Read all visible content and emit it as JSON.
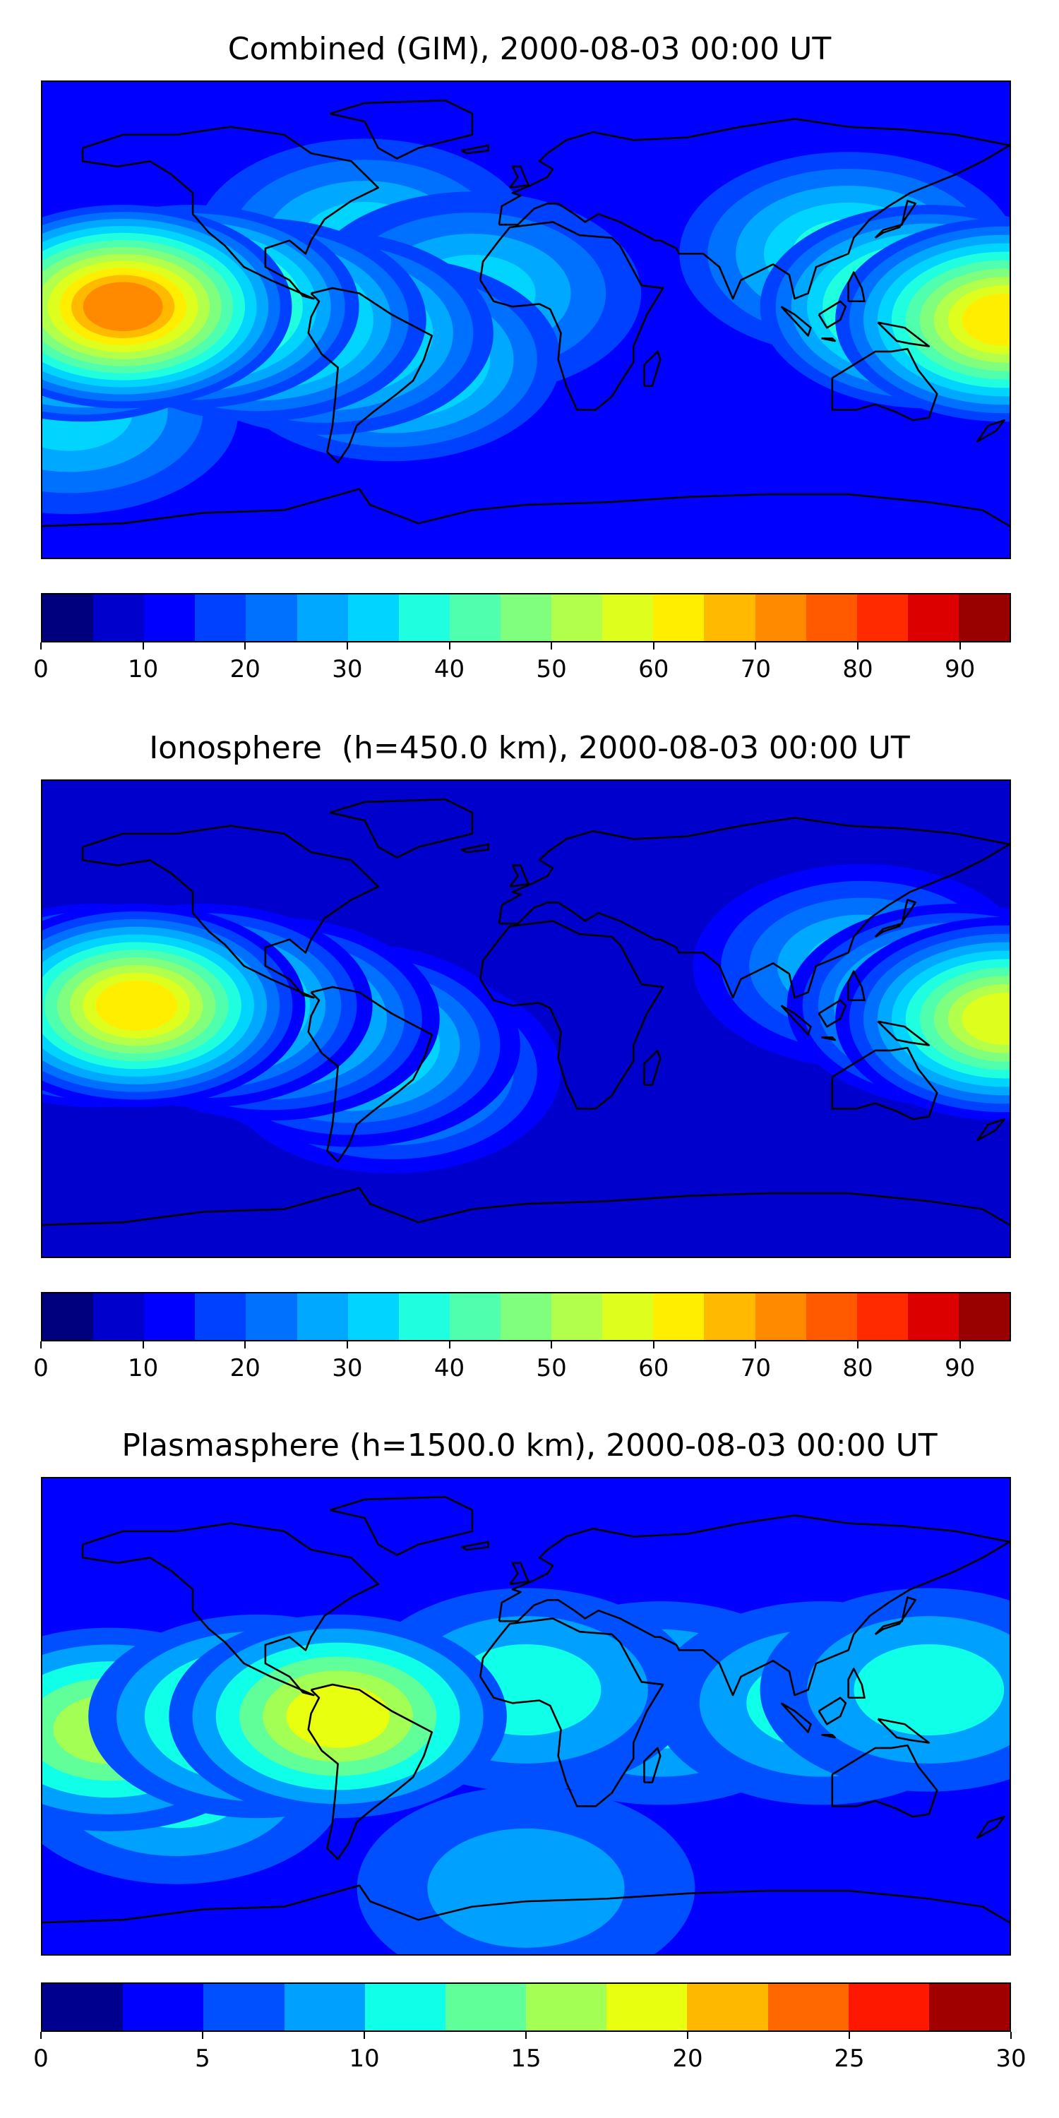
{
  "chart_data": [
    {
      "type": "heatmap",
      "title": "Combined (GIM), 2000-08-03 00:00 UT",
      "xlabel": "",
      "ylabel": "",
      "colorbar": {
        "levels": [
          0,
          5,
          10,
          15,
          20,
          25,
          30,
          35,
          40,
          45,
          50,
          55,
          60,
          65,
          70,
          75,
          80,
          85,
          90,
          95
        ],
        "ticks": [
          0,
          10,
          20,
          30,
          40,
          50,
          60,
          70,
          80,
          90
        ],
        "colors": [
          "#00007f",
          "#0000cd",
          "#0000ff",
          "#0040ff",
          "#0070ff",
          "#00a8ff",
          "#00d4ff",
          "#1fffe0",
          "#50ffae",
          "#80ff7e",
          "#b2ff4c",
          "#deff1e",
          "#ffee00",
          "#ffba00",
          "#ff8a00",
          "#ff5a00",
          "#ff2a00",
          "#dd0000",
          "#990000"
        ]
      },
      "background_level": 10,
      "features": [
        {
          "lon": -150,
          "lat": 5,
          "value": 72
        },
        {
          "lon": -165,
          "lat": 0,
          "value": 70
        },
        {
          "lon": -125,
          "lat": 5,
          "value": 62
        },
        {
          "lon": -100,
          "lat": 0,
          "value": 52
        },
        {
          "lon": -75,
          "lat": -5,
          "value": 45
        },
        {
          "lon": -50,
          "lat": -15,
          "value": 40
        },
        {
          "lon": -20,
          "lat": 10,
          "value": 32
        },
        {
          "lon": 150,
          "lat": 5,
          "value": 55
        },
        {
          "lon": 178,
          "lat": 0,
          "value": 64
        },
        {
          "lon": 120,
          "lat": 25,
          "value": 35
        },
        {
          "lon": -60,
          "lat": 30,
          "value": 30
        },
        {
          "lon": -170,
          "lat": -35,
          "value": 30
        },
        {
          "lon": 30,
          "lat": -40,
          "value": 12
        },
        {
          "lon": 20,
          "lat": 55,
          "value": 12
        }
      ]
    },
    {
      "type": "heatmap",
      "title": "Ionosphere  (h=450.0 km), 2000-08-03 00:00 UT",
      "xlabel": "",
      "ylabel": "",
      "colorbar": {
        "levels": [
          0,
          5,
          10,
          15,
          20,
          25,
          30,
          35,
          40,
          45,
          50,
          55,
          60,
          65,
          70,
          75,
          80,
          85,
          90,
          95
        ],
        "ticks": [
          0,
          10,
          20,
          30,
          40,
          50,
          60,
          70,
          80,
          90
        ],
        "colors": [
          "#00007f",
          "#0000cd",
          "#0000ff",
          "#0040ff",
          "#0070ff",
          "#00a8ff",
          "#00d4ff",
          "#1fffe0",
          "#50ffae",
          "#80ff7e",
          "#b2ff4c",
          "#deff1e",
          "#ffee00",
          "#ffba00",
          "#ff8a00",
          "#ff5a00",
          "#ff2a00",
          "#dd0000",
          "#990000"
        ]
      },
      "background_level": 8,
      "features": [
        {
          "lon": -160,
          "lat": 5,
          "value": 60
        },
        {
          "lon": -145,
          "lat": 5,
          "value": 62
        },
        {
          "lon": -120,
          "lat": 5,
          "value": 52
        },
        {
          "lon": -95,
          "lat": 0,
          "value": 45
        },
        {
          "lon": -65,
          "lat": -10,
          "value": 40
        },
        {
          "lon": -50,
          "lat": -20,
          "value": 35
        },
        {
          "lon": 160,
          "lat": 5,
          "value": 50
        },
        {
          "lon": 178,
          "lat": 0,
          "value": 56
        },
        {
          "lon": 125,
          "lat": 20,
          "value": 30
        },
        {
          "lon": 40,
          "lat": -30,
          "value": 6
        }
      ]
    },
    {
      "type": "heatmap",
      "title": "Plasmasphere (h=1500.0 km), 2000-08-03 00:00 UT",
      "xlabel": "",
      "ylabel": "",
      "colorbar": {
        "levels": [
          0,
          2.5,
          5,
          7.5,
          10,
          12.5,
          15,
          17.5,
          20,
          22.5,
          25,
          27.5,
          30
        ],
        "ticks": [
          0,
          5,
          10,
          15,
          20,
          25,
          30
        ],
        "colors": [
          "#00008f",
          "#0000ff",
          "#0050ff",
          "#00a0ff",
          "#10ffe8",
          "#60ff9a",
          "#a4ff54",
          "#e8ff10",
          "#ffb800",
          "#ff6800",
          "#ff1800",
          "#a00000"
        ]
      },
      "background_level": 3,
      "features": [
        {
          "lon": -155,
          "lat": -5,
          "value": 15
        },
        {
          "lon": -100,
          "lat": 0,
          "value": 17
        },
        {
          "lon": -70,
          "lat": 0,
          "value": 18
        },
        {
          "lon": 0,
          "lat": 10,
          "value": 12
        },
        {
          "lon": 50,
          "lat": 5,
          "value": 10
        },
        {
          "lon": 110,
          "lat": 5,
          "value": 12
        },
        {
          "lon": 150,
          "lat": 10,
          "value": 12
        },
        {
          "lon": -130,
          "lat": -25,
          "value": 10
        },
        {
          "lon": 0,
          "lat": -65,
          "value": 8
        }
      ]
    }
  ]
}
